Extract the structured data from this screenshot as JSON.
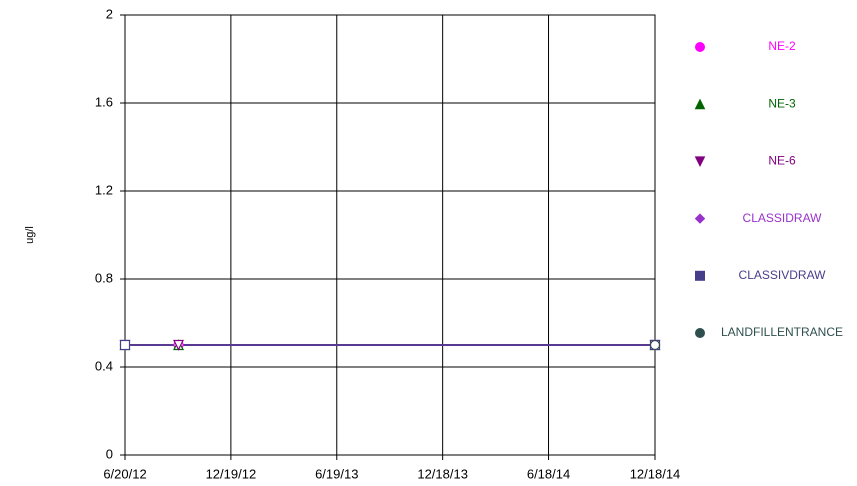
{
  "chart_data": {
    "type": "line",
    "y_label": "ug/l",
    "xlim": [
      "6/20/12",
      "12/18/14"
    ],
    "xticks": [
      "6/20/12",
      "12/19/12",
      "6/19/13",
      "12/18/13",
      "6/18/14",
      "12/18/14"
    ],
    "ylim": [
      0,
      2
    ],
    "yticks": [
      0,
      0.4,
      0.8,
      1.2,
      1.6,
      2
    ],
    "grid": true,
    "series": [
      {
        "name": "NE-2",
        "color": "#ff00ff",
        "marker": "circle",
        "x": [
          "6/20/12",
          "9/20/12",
          "12/18/14"
        ],
        "values": [
          0.5,
          0.5,
          0.5
        ]
      },
      {
        "name": "NE-3",
        "color": "#006400",
        "marker": "triangle",
        "x": [
          "6/20/12",
          "9/20/12",
          "12/18/14"
        ],
        "values": [
          0.5,
          0.5,
          0.5
        ]
      },
      {
        "name": "NE-6",
        "color": "#800080",
        "marker": "triangle-down",
        "x": [
          "6/20/12",
          "9/20/12",
          "12/18/14"
        ],
        "values": [
          0.5,
          0.5,
          0.5
        ]
      },
      {
        "name": "CLASSIDRAW",
        "color": "#9932cc",
        "marker": "diamond",
        "x": [
          "6/20/12",
          "12/18/14"
        ],
        "values": [
          0.5,
          0.5
        ]
      },
      {
        "name": "CLASSIVDRAW",
        "color": "#483d8b",
        "marker": "square",
        "x": [
          "6/20/12",
          "12/18/14"
        ],
        "values": [
          0.5,
          0.5
        ]
      },
      {
        "name": "LANDFILLENTRANCE",
        "color": "#2f4f4f",
        "marker": "circle",
        "x": [
          "12/18/14"
        ],
        "values": [
          0.5
        ]
      }
    ]
  }
}
